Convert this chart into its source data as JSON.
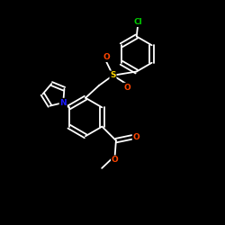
{
  "background": "#000000",
  "bond_color": "#ffffff",
  "atom_colors": {
    "N": "#1a1aff",
    "O": "#ff4500",
    "S": "#ffd700",
    "Cl": "#00cc00",
    "C": "#ffffff"
  },
  "figsize": [
    2.5,
    2.5
  ],
  "dpi": 100,
  "xlim": [
    0,
    10
  ],
  "ylim": [
    0,
    10
  ]
}
